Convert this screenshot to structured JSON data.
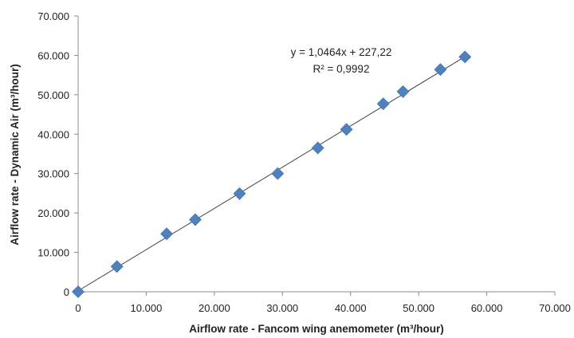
{
  "chart_data": {
    "type": "scatter",
    "title": "",
    "xlabel": "Airflow rate - Fancom wing anemometer (m³/hour)",
    "ylabel": "Airflow rate - Dynamic Air (m³/hour)",
    "xlim": [
      0,
      70000
    ],
    "ylim": [
      0,
      70000
    ],
    "x_ticks": [
      "0",
      "10.000",
      "20.000",
      "30.000",
      "40.000",
      "50.000",
      "60.000",
      "70.000"
    ],
    "y_ticks": [
      "0",
      "10.000",
      "20.000",
      "30.000",
      "40.000",
      "50.000",
      "60.000",
      "70.000"
    ],
    "grid": false,
    "legend": "none",
    "marker": "diamond",
    "marker_color": "#4f81bd",
    "trendline_color": "#404040",
    "series": [
      {
        "x": [
          0,
          5700,
          13000,
          17200,
          23700,
          29300,
          35200,
          39400,
          44800,
          47700,
          53200,
          56800
        ],
        "y": [
          0,
          6400,
          14700,
          18300,
          24900,
          30000,
          36500,
          41200,
          47700,
          50800,
          56400,
          59600
        ]
      }
    ],
    "trendline": {
      "slope": 1.0464,
      "intercept": 227.22
    },
    "annotations": {
      "equation": "y = 1,0464x + 227,22",
      "r_squared": "R² = 0,9992"
    }
  }
}
